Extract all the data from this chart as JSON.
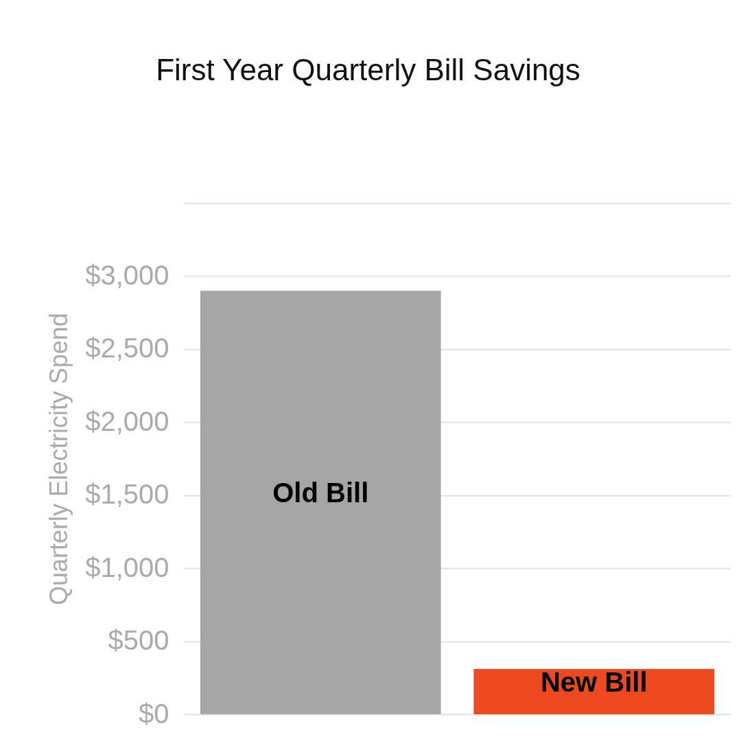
{
  "chart_data": {
    "type": "bar",
    "title": "First Year Quarterly Bill Savings",
    "ylabel": "Quarterly Electricity Spend",
    "categories": [
      "Old Bill",
      "New Bill"
    ],
    "values": [
      2900,
      310
    ],
    "colors": [
      "#a6a6a6",
      "#ee4a22"
    ],
    "ylim": [
      0,
      3500
    ],
    "yticks": [
      {
        "value": 0,
        "label": "$0"
      },
      {
        "value": 500,
        "label": "$500"
      },
      {
        "value": 1000,
        "label": "$1,000"
      },
      {
        "value": 1500,
        "label": "$1,500"
      },
      {
        "value": 2000,
        "label": "$2,000"
      },
      {
        "value": 2500,
        "label": "$2,500"
      },
      {
        "value": 3000,
        "label": "$3,000"
      },
      {
        "value": 3500,
        "label": null
      }
    ],
    "grid": "y",
    "tick_labels": "y"
  }
}
